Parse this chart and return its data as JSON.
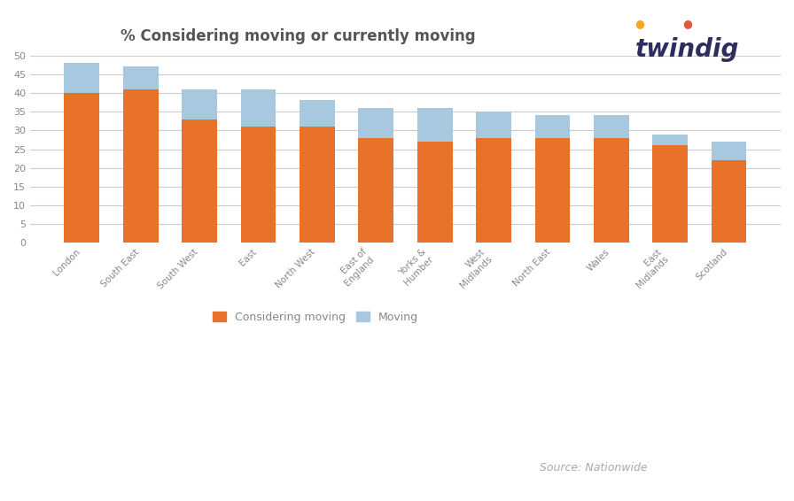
{
  "title": "% Considering moving or currently moving",
  "categories": [
    "London",
    "South East",
    "South West",
    "East",
    "North West",
    "East of\nEngland",
    "Yorks &\nHumber",
    "West\nMidlands",
    "North East",
    "Wales",
    "East\nMidlands",
    "Scotland"
  ],
  "considering": [
    40,
    41,
    33,
    31,
    31,
    28,
    27,
    28,
    28,
    28,
    26,
    22
  ],
  "moving": [
    8,
    6,
    8,
    10,
    7,
    8,
    9,
    7,
    6,
    6,
    3,
    5
  ],
  "orange_color": "#E8722A",
  "blue_color": "#A8C8DF",
  "bg_color": "#ffffff",
  "grid_color": "#cccccc",
  "ylim": [
    0,
    50
  ],
  "yticks": [
    0,
    5,
    10,
    15,
    20,
    25,
    30,
    35,
    40,
    45,
    50
  ],
  "legend_considering": "Considering moving",
  "legend_moving": "Moving",
  "source_text": "Source: Nationwide",
  "twindig_text": "twindig",
  "title_color": "#555555",
  "tick_color": "#888888",
  "source_color": "#aaaaaa",
  "twindig_color": "#2d2d5e"
}
